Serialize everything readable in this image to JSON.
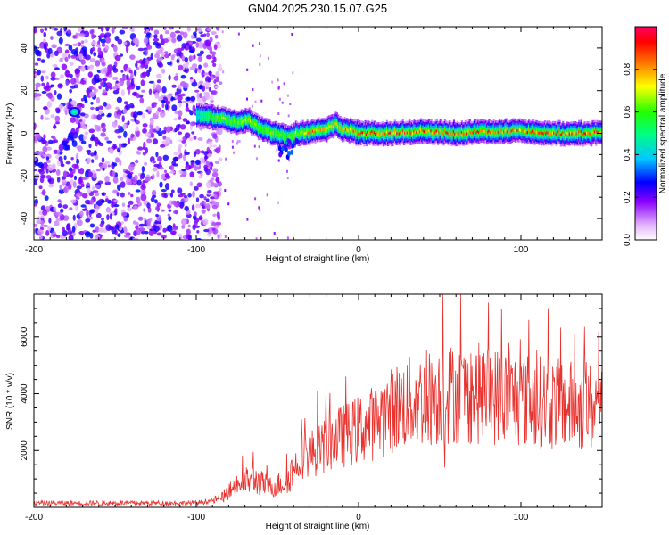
{
  "figure": {
    "title": "GN04.2025.230.15.07.G25",
    "colors": {
      "snr_line": "#e8322e",
      "frame": "#000000",
      "background": "#ffffff"
    }
  },
  "chart_data": [
    {
      "type": "heatmap",
      "xlabel": "Height of straight line (km)",
      "ylabel": "Frequency (Hz)",
      "xlim": [
        -200,
        150
      ],
      "ylim": [
        -50,
        50
      ],
      "x_ticks": [
        -200,
        -100,
        0,
        100
      ],
      "y_ticks": [
        -40,
        -20,
        0,
        20,
        40
      ],
      "colorbar": {
        "label": "Normalized spectral amplitude",
        "range": [
          0,
          1
        ],
        "ticks": [
          "0.0",
          "0.2",
          "0.4",
          "0.6",
          "0.8"
        ],
        "tick_values": [
          0,
          0.2,
          0.4,
          0.6,
          0.8
        ],
        "colormap": "rainbow (white-violet-blue-cyan-green-yellow-red-magenta)"
      },
      "noise_region": {
        "x_range": [
          -200,
          -85
        ],
        "y_range": [
          -50,
          50
        ],
        "amplitude": "low (0.1-0.3)"
      },
      "ridge": [
        {
          "x": -175,
          "y": 10,
          "amp": 0.45
        },
        {
          "x": -105,
          "y": 10,
          "amp": 0.35
        },
        {
          "x": -95,
          "y": 8,
          "amp": 0.5
        },
        {
          "x": -85,
          "y": 7,
          "amp": 0.7
        },
        {
          "x": -75,
          "y": 5,
          "amp": 0.6
        },
        {
          "x": -68,
          "y": 6,
          "amp": 0.75
        },
        {
          "x": -60,
          "y": 2,
          "amp": 0.6
        },
        {
          "x": -52,
          "y": 0,
          "amp": 0.65
        },
        {
          "x": -45,
          "y": -2,
          "amp": 0.6
        },
        {
          "x": -38,
          "y": 0,
          "amp": 0.7
        },
        {
          "x": -30,
          "y": 1,
          "amp": 0.85
        },
        {
          "x": -20,
          "y": 2,
          "amp": 0.8
        },
        {
          "x": -15,
          "y": 4,
          "amp": 0.75
        },
        {
          "x": -10,
          "y": 2,
          "amp": 0.85
        },
        {
          "x": 0,
          "y": 0,
          "amp": 0.9
        },
        {
          "x": 20,
          "y": 0,
          "amp": 0.9
        },
        {
          "x": 40,
          "y": 1,
          "amp": 0.9
        },
        {
          "x": 60,
          "y": 0,
          "amp": 0.9
        },
        {
          "x": 80,
          "y": 1,
          "amp": 0.9
        },
        {
          "x": 100,
          "y": 1,
          "amp": 0.9
        },
        {
          "x": 120,
          "y": 0,
          "amp": 0.9
        },
        {
          "x": 140,
          "y": 0,
          "amp": 0.9
        },
        {
          "x": 150,
          "y": 0,
          "amp": 0.9
        }
      ]
    },
    {
      "type": "line",
      "xlabel": "Height of straight line (km)",
      "ylabel": "SNR (10 * v/v)",
      "xlim": [
        -200,
        150
      ],
      "ylim": [
        0,
        7500
      ],
      "x_ticks": [
        -200,
        -100,
        0,
        100
      ],
      "y_ticks": [
        2000,
        4000,
        6000
      ],
      "series": [
        {
          "envelope": [
            {
              "x": -200,
              "y": 150
            },
            {
              "x": -150,
              "y": 150
            },
            {
              "x": -100,
              "y": 150
            },
            {
              "x": -85,
              "y": 300
            },
            {
              "x": -75,
              "y": 800
            },
            {
              "x": -65,
              "y": 1000
            },
            {
              "x": -55,
              "y": 700
            },
            {
              "x": -45,
              "y": 900
            },
            {
              "x": -35,
              "y": 1800
            },
            {
              "x": -25,
              "y": 2000
            },
            {
              "x": -15,
              "y": 2400
            },
            {
              "x": -5,
              "y": 2600
            },
            {
              "x": 10,
              "y": 3000
            },
            {
              "x": 25,
              "y": 3600
            },
            {
              "x": 40,
              "y": 3800
            },
            {
              "x": 55,
              "y": 4000
            },
            {
              "x": 75,
              "y": 4000
            },
            {
              "x": 100,
              "y": 3800
            },
            {
              "x": 125,
              "y": 3600
            },
            {
              "x": 150,
              "y": 3500
            }
          ],
          "spikes": [
            {
              "x": -65,
              "y": 1950
            },
            {
              "x": -35,
              "y": 3100
            },
            {
              "x": -20,
              "y": 4000
            },
            {
              "x": -8,
              "y": 4600
            },
            {
              "x": 52,
              "y": 7500
            },
            {
              "x": 53,
              "y": 1400
            },
            {
              "x": 105,
              "y": 6600
            },
            {
              "x": 148,
              "y": 6200
            }
          ]
        }
      ]
    }
  ]
}
